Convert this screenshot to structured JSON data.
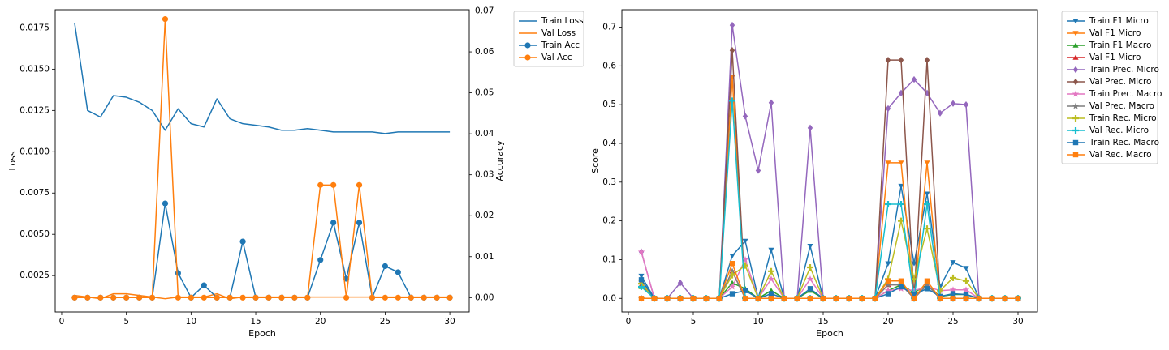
{
  "chart_data": [
    {
      "type": "line",
      "xlabel": "Epoch",
      "ylabel": "Loss",
      "ylabel_right": "Accuracy",
      "xlim": [
        -0.5,
        31.5
      ],
      "ylim": [
        0.0003,
        0.0186
      ],
      "ylim_right": [
        -0.0035,
        0.0703
      ],
      "xticks": [
        0,
        5,
        10,
        15,
        20,
        25,
        30
      ],
      "yticks": [
        0.0025,
        0.005,
        0.0075,
        0.01,
        0.0125,
        0.015,
        0.0175
      ],
      "ytick_labels": [
        "0.0025",
        "0.0050",
        "0.0075",
        "0.0100",
        "0.0125",
        "0.0150",
        "0.0175"
      ],
      "yticks_right": [
        0,
        0.01,
        0.02,
        0.03,
        0.04,
        0.05,
        0.06,
        0.07
      ],
      "ytick_labels_right": [
        "0.00",
        "0.01",
        "0.02",
        "0.03",
        "0.04",
        "0.05",
        "0.06",
        "0.07"
      ],
      "legend_position": "outside-right-top",
      "x": [
        1,
        2,
        3,
        4,
        5,
        6,
        7,
        8,
        9,
        10,
        11,
        12,
        13,
        14,
        15,
        16,
        17,
        18,
        19,
        20,
        21,
        22,
        23,
        24,
        25,
        26,
        27,
        28,
        29,
        30
      ],
      "series": [
        {
          "name": "Train Loss",
          "axis": "left",
          "color": "#1f77b4",
          "marker": "none",
          "values": [
            0.0178,
            0.0125,
            0.0121,
            0.0134,
            0.0133,
            0.013,
            0.0125,
            0.0113,
            0.0126,
            0.0117,
            0.0115,
            0.0132,
            0.012,
            0.0117,
            0.0116,
            0.0115,
            0.0113,
            0.0113,
            0.0114,
            0.0113,
            0.0112,
            0.0112,
            0.0112,
            0.0112,
            0.0111,
            0.0112,
            0.0112,
            0.0112,
            0.0112,
            0.0112
          ]
        },
        {
          "name": "Val Loss",
          "axis": "left",
          "color": "#ff7f0e",
          "marker": "none",
          "values": [
            0.0013,
            0.0012,
            0.0011,
            0.0014,
            0.0014,
            0.0013,
            0.0012,
            0.0011,
            0.0012,
            0.0012,
            0.0012,
            0.0014,
            0.0011,
            0.0012,
            0.0012,
            0.0012,
            0.0012,
            0.0012,
            0.0012,
            0.0012,
            0.0012,
            0.0012,
            0.0012,
            0.0012,
            0.0012,
            0.0012,
            0.0012,
            0.0012,
            0.0012,
            0.0012
          ]
        },
        {
          "name": "Train Acc",
          "axis": "right",
          "color": "#1f77b4",
          "marker": "circle",
          "values": [
            0,
            0,
            0,
            0,
            0,
            0,
            0,
            0.023,
            0.006,
            0,
            0.003,
            0,
            0,
            0.0137,
            0,
            0,
            0,
            0,
            0,
            0.0092,
            0.0183,
            0.0046,
            0.0183,
            0,
            0.0077,
            0.0062,
            0,
            0,
            0,
            0
          ]
        },
        {
          "name": "Val Acc",
          "axis": "right",
          "color": "#ff7f0e",
          "marker": "circle",
          "values": [
            0,
            0,
            0,
            0,
            0,
            0,
            0,
            0.068,
            0,
            0,
            0,
            0,
            0,
            0,
            0,
            0,
            0,
            0,
            0,
            0.0275,
            0.0275,
            0,
            0.0275,
            0,
            0,
            0,
            0,
            0,
            0,
            0
          ]
        }
      ]
    },
    {
      "type": "line",
      "xlabel": "Epoch",
      "ylabel": "Score",
      "xlim": [
        -0.5,
        31.5
      ],
      "ylim": [
        -0.035,
        0.745
      ],
      "xticks": [
        0,
        5,
        10,
        15,
        20,
        25,
        30
      ],
      "yticks": [
        0,
        0.1,
        0.2,
        0.3,
        0.4,
        0.5,
        0.6,
        0.7
      ],
      "ytick_labels": [
        "0.0",
        "0.1",
        "0.2",
        "0.3",
        "0.4",
        "0.5",
        "0.6",
        "0.7"
      ],
      "legend_position": "outside-right-top",
      "x": [
        1,
        2,
        3,
        4,
        5,
        6,
        7,
        8,
        9,
        10,
        11,
        12,
        13,
        14,
        15,
        16,
        17,
        18,
        19,
        20,
        21,
        22,
        23,
        24,
        25,
        26,
        27,
        28,
        29,
        30
      ],
      "series": [
        {
          "name": "Train F1 Micro",
          "color": "#1f77b4",
          "marker": "tri_down",
          "values": [
            0.058,
            0,
            0,
            0,
            0,
            0,
            0,
            0.11,
            0.148,
            0,
            0.125,
            0,
            0,
            0.135,
            0,
            0,
            0,
            0,
            0,
            0.09,
            0.29,
            0.09,
            0.27,
            0.03,
            0.093,
            0.078,
            0,
            0,
            0,
            0
          ]
        },
        {
          "name": "Val F1 Micro",
          "color": "#ff7f0e",
          "marker": "tri_down",
          "values": [
            0.04,
            0,
            0,
            0,
            0,
            0,
            0,
            0.57,
            0,
            0,
            0,
            0,
            0,
            0,
            0,
            0,
            0,
            0,
            0,
            0.35,
            0.35,
            0,
            0.35,
            0,
            0,
            0,
            0,
            0,
            0,
            0
          ]
        },
        {
          "name": "Train F1 Macro",
          "color": "#2ca02c",
          "marker": "tri_up",
          "values": [
            0.03,
            0,
            0,
            0,
            0,
            0,
            0,
            0.04,
            0.025,
            0,
            0.02,
            0,
            0,
            0.02,
            0,
            0,
            0,
            0,
            0,
            0.02,
            0.035,
            0.015,
            0.035,
            0.005,
            0.01,
            0.01,
            0,
            0,
            0,
            0
          ]
        },
        {
          "name": "Val F1 Micro",
          "color": "#d62728",
          "marker": "tri_up",
          "values": [
            0.035,
            0,
            0,
            0,
            0,
            0,
            0,
            0.07,
            0,
            0,
            0,
            0,
            0,
            0,
            0,
            0,
            0,
            0,
            0,
            0.035,
            0.035,
            0,
            0.035,
            0,
            0,
            0,
            0,
            0,
            0,
            0
          ]
        },
        {
          "name": "Train Prec. Micro",
          "color": "#9467bd",
          "marker": "diamond",
          "values": [
            0.12,
            0,
            0,
            0.04,
            0,
            0,
            0,
            0.705,
            0.47,
            0.33,
            0.505,
            0,
            0,
            0.44,
            0,
            0,
            0,
            0,
            0,
            0.49,
            0.53,
            0.565,
            0.53,
            0.478,
            0.503,
            0.5,
            0,
            0,
            0,
            0
          ]
        },
        {
          "name": "Val Prec. Micro",
          "color": "#8c564b",
          "marker": "diamond",
          "values": [
            0,
            0,
            0,
            0,
            0,
            0,
            0,
            0.64,
            0,
            0,
            0,
            0,
            0,
            0,
            0,
            0,
            0,
            0,
            0,
            0.615,
            0.615,
            0,
            0.615,
            0,
            0,
            0,
            0,
            0,
            0,
            0
          ]
        },
        {
          "name": "Train Prec. Macro",
          "color": "#e377c2",
          "marker": "star",
          "values": [
            0.12,
            0,
            0,
            0,
            0,
            0,
            0,
            0.03,
            0.1,
            0,
            0.05,
            0,
            0,
            0.05,
            0,
            0,
            0,
            0,
            0,
            0.02,
            0.025,
            0.02,
            0.03,
            0.02,
            0.022,
            0.022,
            0,
            0,
            0,
            0
          ]
        },
        {
          "name": "Val Prec. Macro",
          "color": "#7f7f7f",
          "marker": "star",
          "values": [
            0,
            0,
            0,
            0,
            0,
            0,
            0,
            0.07,
            0,
            0,
            0,
            0,
            0,
            0,
            0,
            0,
            0,
            0,
            0,
            0.035,
            0.035,
            0,
            0.035,
            0,
            0,
            0,
            0,
            0,
            0,
            0
          ]
        },
        {
          "name": "Train Rec. Micro",
          "color": "#bcbd22",
          "marker": "plus",
          "values": [
            0.038,
            0,
            0,
            0,
            0,
            0,
            0,
            0.06,
            0.085,
            0,
            0.07,
            0,
            0,
            0.08,
            0,
            0,
            0,
            0,
            0,
            0.05,
            0.2,
            0.05,
            0.18,
            0.02,
            0.053,
            0.045,
            0,
            0,
            0,
            0
          ]
        },
        {
          "name": "Val Rec. Micro",
          "color": "#17becf",
          "marker": "plus",
          "values": [
            0.03,
            0,
            0,
            0,
            0,
            0,
            0,
            0.51,
            0,
            0,
            0,
            0,
            0,
            0,
            0,
            0,
            0,
            0,
            0,
            0.243,
            0.243,
            0,
            0.243,
            0,
            0,
            0,
            0,
            0,
            0,
            0
          ]
        },
        {
          "name": "Train Rec. Macro",
          "color": "#1f77b4",
          "marker": "square",
          "values": [
            0.048,
            0,
            0,
            0,
            0,
            0,
            0,
            0.012,
            0.02,
            0,
            0.012,
            0,
            0,
            0.025,
            0,
            0,
            0,
            0,
            0,
            0.012,
            0.03,
            0.01,
            0.025,
            0.005,
            0.012,
            0.01,
            0,
            0,
            0,
            0
          ]
        },
        {
          "name": "Val Rec. Macro",
          "color": "#ff7f0e",
          "marker": "square",
          "values": [
            0,
            0,
            0,
            0,
            0,
            0,
            0,
            0.09,
            0,
            0,
            0,
            0,
            0,
            0,
            0,
            0,
            0,
            0,
            0,
            0.045,
            0.045,
            0,
            0.045,
            0,
            0,
            0,
            0,
            0,
            0,
            0
          ]
        }
      ]
    }
  ]
}
